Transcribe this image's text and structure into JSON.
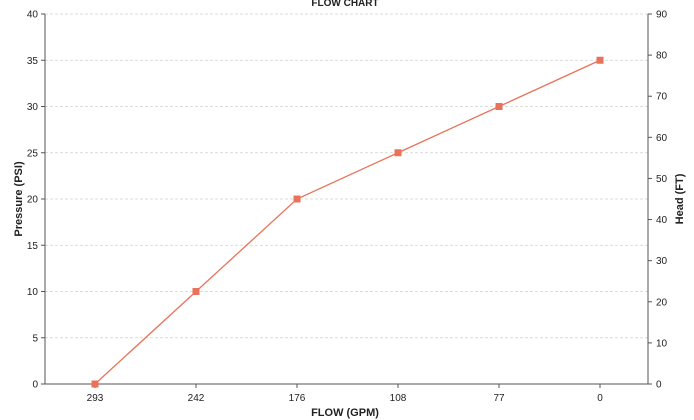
{
  "chart_data": {
    "type": "line",
    "title": "FLOW CHART",
    "xlabel": "FLOW (GPM)",
    "ylabel": "Pressure (PSI)",
    "y2label": "Head (FT)",
    "categories": [
      "293",
      "242",
      "176",
      "108",
      "77",
      "0"
    ],
    "series": [
      {
        "values": [
          0,
          10,
          20,
          25,
          30,
          35
        ],
        "color": "#e8735a"
      }
    ],
    "ylim": [
      0,
      40
    ],
    "yticks": [
      0,
      5,
      10,
      15,
      20,
      25,
      30,
      35,
      40
    ],
    "y2lim": [
      0,
      90
    ],
    "y2ticks": [
      0,
      10,
      20,
      30,
      40,
      50,
      60,
      70,
      80,
      90
    ],
    "grid": true,
    "legend": "none"
  }
}
